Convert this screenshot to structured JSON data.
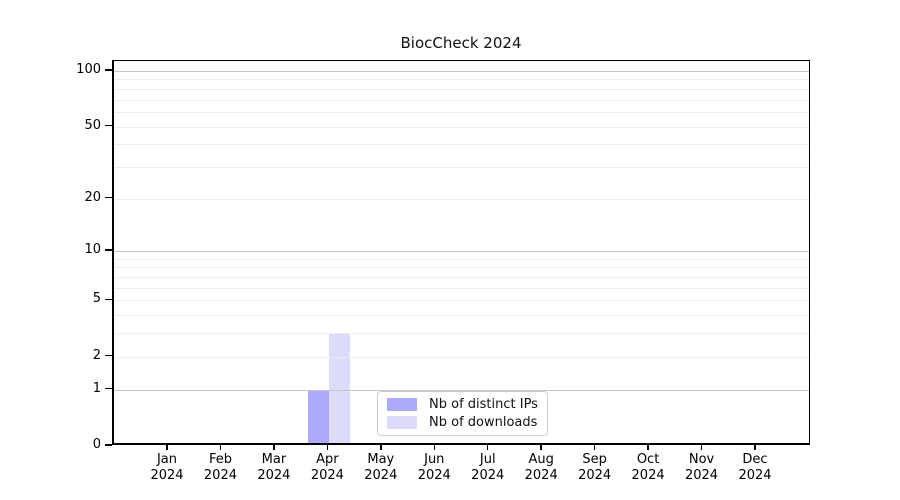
{
  "chart_data": {
    "type": "bar",
    "title": "BiocCheck 2024",
    "categories": [
      "Jan 2024",
      "Feb 2024",
      "Mar 2024",
      "Apr 2024",
      "May 2024",
      "Jun 2024",
      "Jul 2024",
      "Aug 2024",
      "Sep 2024",
      "Oct 2024",
      "Nov 2024",
      "Dec 2024"
    ],
    "series": [
      {
        "name": "Nb of distinct IPs",
        "color": "#aaaaf8",
        "values": [
          0,
          0,
          0,
          1,
          0,
          0,
          0,
          0,
          0,
          0,
          0,
          0
        ]
      },
      {
        "name": "Nb of downloads",
        "color": "#dcdcfa",
        "values": [
          0,
          0,
          0,
          3,
          0,
          0,
          0,
          0,
          0,
          0,
          0,
          0
        ]
      }
    ],
    "y_axis": {
      "scale": "log1p",
      "tick_values": [
        0,
        1,
        2,
        5,
        10,
        20,
        50,
        100
      ],
      "major_gridlines": [
        1,
        10,
        100
      ],
      "minor_gridlines": [
        2,
        3,
        4,
        5,
        6,
        7,
        8,
        9,
        20,
        30,
        40,
        50,
        60,
        70,
        80,
        90
      ],
      "min": 0,
      "max": 100
    },
    "grid": true,
    "legend_position": "bottom-center-inside"
  },
  "colors": {
    "major_grid": "#c6c6c6",
    "minor_grid": "#ededed",
    "axis": "#000000",
    "background": "#ffffff"
  }
}
